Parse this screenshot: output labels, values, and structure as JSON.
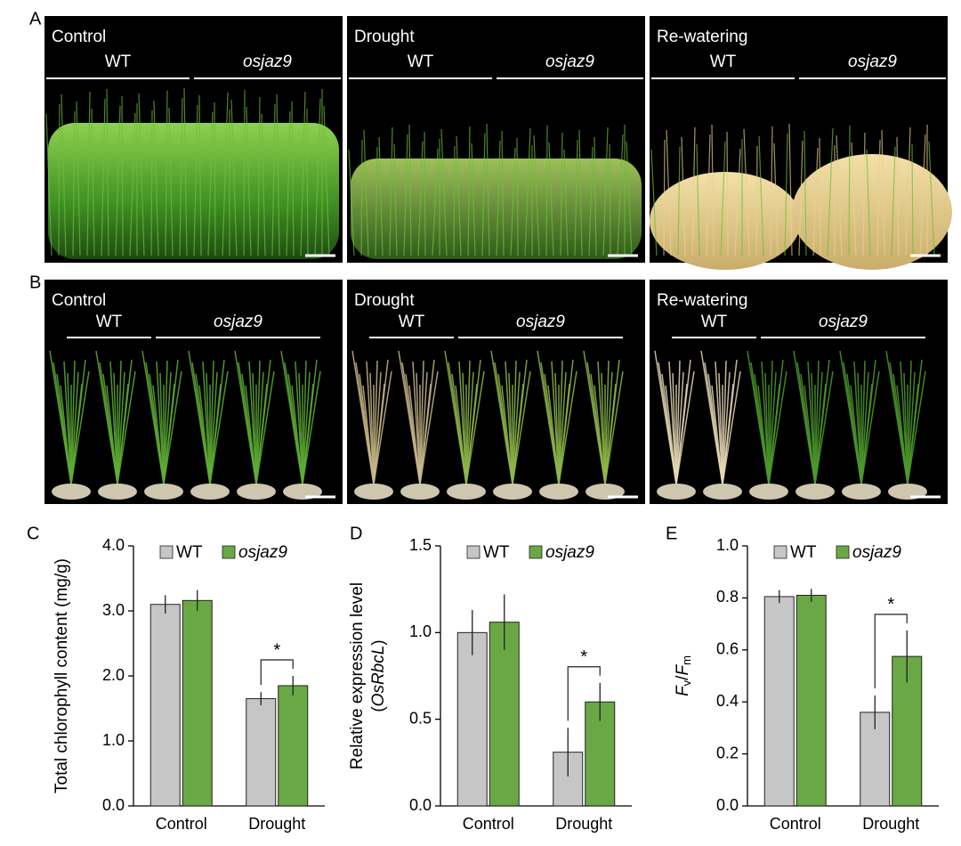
{
  "photo_panels": [
    {
      "letter": "A",
      "conditions": [
        {
          "title": "Control",
          "groups": [
            "WT",
            "osjaz9"
          ]
        },
        {
          "title": "Drought",
          "groups": [
            "WT",
            "osjaz9"
          ]
        },
        {
          "title": "Re-watering",
          "groups": [
            "WT",
            "osjaz9"
          ]
        }
      ]
    },
    {
      "letter": "B",
      "conditions": [
        {
          "title": "Control",
          "groups": [
            "WT",
            "osjaz9"
          ]
        },
        {
          "title": "Drought",
          "groups": [
            "WT",
            "osjaz9"
          ]
        },
        {
          "title": "Re-watering",
          "groups": [
            "WT",
            "osjaz9"
          ]
        }
      ]
    }
  ],
  "chart_data": [
    {
      "type": "bar",
      "panel_label": "C",
      "y_label": [
        {
          "text": "Total chlorophyll content (mg/g)"
        }
      ],
      "categories": [
        "Control",
        "Drought"
      ],
      "series": [
        {
          "name": "WT",
          "color": "#c6c6c6",
          "values": [
            3.1,
            1.65
          ],
          "errors": [
            0.14,
            0.1
          ]
        },
        {
          "name": "osjaz9",
          "color": "#6aa845",
          "values": [
            3.16,
            1.85
          ],
          "errors": [
            0.16,
            0.15
          ]
        }
      ],
      "ylim": [
        0,
        4
      ],
      "yticks": [
        {
          "value": 0,
          "label": "0.0"
        },
        {
          "value": 1,
          "label": "1.0"
        },
        {
          "value": 2,
          "label": "2.0"
        },
        {
          "value": 3,
          "label": "3.0"
        },
        {
          "value": 4,
          "label": "4.0"
        }
      ],
      "annotations": [
        "*"
      ]
    },
    {
      "type": "bar",
      "panel_label": "D",
      "y_label": [
        {
          "text": "Relative expression level"
        },
        {
          "text": "(",
          "line": 2
        },
        {
          "text": "OsRbcL",
          "line": 2,
          "italic": true
        },
        {
          "text": ")",
          "line": 2
        }
      ],
      "categories": [
        "Control",
        "Drought"
      ],
      "series": [
        {
          "name": "WT",
          "color": "#c6c6c6",
          "values": [
            1.0,
            0.31
          ],
          "errors": [
            0.13,
            0.14
          ]
        },
        {
          "name": "osjaz9",
          "color": "#6aa845",
          "values": [
            1.06,
            0.6
          ],
          "errors": [
            0.16,
            0.11
          ]
        }
      ],
      "ylim": [
        0,
        1.5
      ],
      "yticks": [
        {
          "value": 0,
          "label": "0.0"
        },
        0.5,
        {
          "value": 1,
          "label": "1.0"
        },
        1.5
      ],
      "annotations": [
        "*"
      ]
    },
    {
      "type": "bar",
      "panel_label": "E",
      "y_label": [
        {
          "text": "F",
          "italic": true
        },
        {
          "text": "v",
          "sub": true
        },
        {
          "text": "/"
        },
        {
          "text": "F",
          "italic": true
        },
        {
          "text": "m",
          "sub": true
        }
      ],
      "categories": [
        "Control",
        "Drought"
      ],
      "series": [
        {
          "name": "WT",
          "color": "#c6c6c6",
          "values": [
            0.805,
            0.36
          ],
          "errors": [
            0.025,
            0.065
          ]
        },
        {
          "name": "osjaz9",
          "color": "#6aa845",
          "values": [
            0.81,
            0.575
          ],
          "errors": [
            0.025,
            0.1
          ]
        }
      ],
      "ylim": [
        0,
        1
      ],
      "yticks": [
        {
          "value": 0,
          "label": "0.0"
        },
        0.2,
        0.4,
        0.6,
        0.8,
        {
          "value": 1,
          "label": "1.0"
        }
      ],
      "annotations": [
        "*"
      ]
    }
  ]
}
